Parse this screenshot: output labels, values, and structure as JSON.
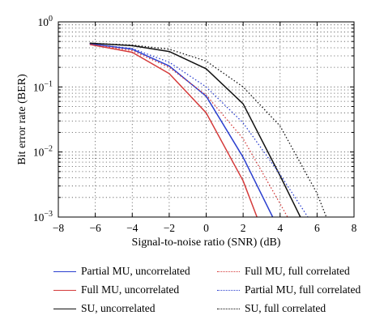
{
  "chart_data": {
    "type": "line",
    "xlabel": "Signal-to-noise ratio (SNR) (dB)",
    "ylabel": "Bit error rate (BER)",
    "xlim": [
      -8,
      8
    ],
    "ylim": [
      0.001,
      1
    ],
    "yscale": "log",
    "grid": true,
    "legend_position": "bottom",
    "x_ticks": [
      "−8",
      "−6",
      "−4",
      "−2",
      "0",
      "2",
      "4",
      "6",
      "8"
    ],
    "y_ticks": [
      {
        "base": "10",
        "exp": "0"
      },
      {
        "base": "10",
        "exp": "−1"
      },
      {
        "base": "10",
        "exp": "−2"
      },
      {
        "base": "10",
        "exp": "−3"
      }
    ],
    "series": [
      {
        "name": "Partial MU, uncorrelated",
        "color": "#2b3fcf",
        "dash": "solid",
        "x": [
          -6.3,
          -4,
          -2,
          0,
          2,
          3.6
        ],
        "y": [
          0.46,
          0.38,
          0.21,
          0.072,
          0.0083,
          0.001
        ]
      },
      {
        "name": "Full MU, uncorrelated",
        "color": "#d43a3a",
        "dash": "solid",
        "x": [
          -6.3,
          -4,
          -2,
          0,
          2,
          2.75
        ],
        "y": [
          0.45,
          0.34,
          0.16,
          0.04,
          0.0036,
          0.001
        ]
      },
      {
        "name": "SU, uncorrelated",
        "color": "#111111",
        "dash": "solid",
        "x": [
          -6.3,
          -4,
          -2,
          0,
          2,
          4,
          5.1
        ],
        "y": [
          0.47,
          0.43,
          0.35,
          0.19,
          0.055,
          0.0043,
          0.001
        ]
      },
      {
        "name": "Full MU, full correlated",
        "color": "#d43a3a",
        "dash": "dotted",
        "x": [
          -6.3,
          -4,
          -2,
          0,
          2,
          4,
          4.4
        ],
        "y": [
          0.46,
          0.36,
          0.2,
          0.075,
          0.016,
          0.0016,
          0.001
        ]
      },
      {
        "name": "Partial MU, full correlated",
        "color": "#2b3fcf",
        "dash": "dotted",
        "x": [
          -6.3,
          -4,
          -2,
          0,
          2,
          4,
          5.5
        ],
        "y": [
          0.46,
          0.39,
          0.24,
          0.1,
          0.028,
          0.0045,
          0.001
        ]
      },
      {
        "name": "SU, full correlated",
        "color": "#111111",
        "dash": "dotted",
        "x": [
          -6.3,
          -4,
          -2,
          0,
          2,
          4,
          6,
          6.5
        ],
        "y": [
          0.47,
          0.44,
          0.38,
          0.25,
          0.1,
          0.025,
          0.0023,
          0.001
        ]
      }
    ]
  }
}
